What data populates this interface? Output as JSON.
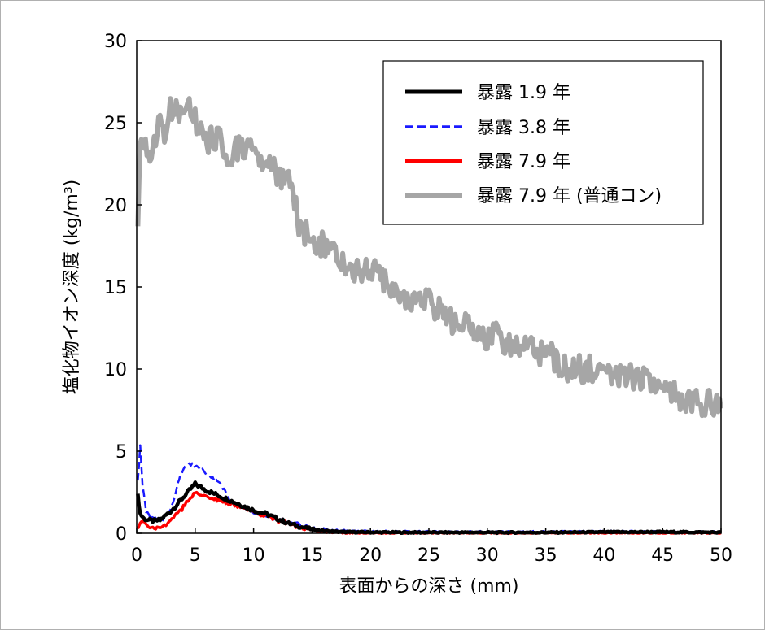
{
  "chart_data": {
    "type": "line",
    "xlabel": "表面からの深さ (mm)",
    "ylabel": "塩化物イオン深度 (kg/m³)",
    "xlim": [
      0,
      50
    ],
    "ylim": [
      0,
      30
    ],
    "xticks": [
      "0",
      "5",
      "10",
      "15",
      "20",
      "25",
      "30",
      "35",
      "40",
      "45",
      "50"
    ],
    "yticks": [
      "0",
      "5",
      "10",
      "15",
      "20",
      "25",
      "30"
    ],
    "grid": false,
    "legend_position": "top-right",
    "series": [
      {
        "name": "暴露 1.9 年",
        "color": "#000000",
        "dash": "solid",
        "x": [
          0.1,
          0.3,
          0.6,
          1,
          1.5,
          2,
          2.5,
          3,
          3.5,
          4,
          4.5,
          5,
          5.5,
          6,
          7,
          8,
          9,
          10,
          11,
          12,
          13,
          14,
          15,
          16,
          17,
          18,
          20,
          25,
          30,
          35,
          40,
          45,
          50
        ],
        "y": [
          2.3,
          1.2,
          0.9,
          0.8,
          0.75,
          0.8,
          1.1,
          1.4,
          1.8,
          2.2,
          2.6,
          3.0,
          2.8,
          2.6,
          2.3,
          2.0,
          1.7,
          1.4,
          1.2,
          0.9,
          0.6,
          0.4,
          0.25,
          0.15,
          0.1,
          0.08,
          0.06,
          0.05,
          0.05,
          0.05,
          0.07,
          0.08,
          0.05
        ]
      },
      {
        "name": "暴露 3.8 年",
        "color": "#1a1aff",
        "dash": "dashed",
        "x": [
          0.1,
          0.3,
          0.5,
          0.8,
          1.2,
          1.6,
          2,
          2.5,
          3,
          3.5,
          4,
          4.5,
          5,
          5.5,
          6,
          6.5,
          7,
          7.5,
          8,
          9,
          10,
          11,
          12,
          13,
          14,
          15,
          16,
          17,
          18,
          20,
          25,
          30,
          35,
          40,
          45,
          50
        ],
        "y": [
          3.2,
          5.3,
          3.0,
          1.3,
          0.9,
          0.85,
          0.8,
          0.9,
          1.6,
          3.0,
          4.0,
          4.2,
          4.1,
          3.9,
          3.6,
          3.4,
          3.1,
          2.6,
          2.0,
          1.6,
          1.3,
          1.1,
          0.9,
          0.7,
          0.5,
          0.35,
          0.25,
          0.2,
          0.15,
          0.12,
          0.1,
          0.1,
          0.1,
          0.12,
          0.1,
          0.08
        ]
      },
      {
        "name": "暴露 7.9 年",
        "color": "#ff0000",
        "dash": "solid",
        "x": [
          0.1,
          0.3,
          0.6,
          1,
          1.5,
          2,
          2.5,
          3,
          3.5,
          4,
          4.5,
          5,
          5.5,
          6,
          7,
          8,
          9,
          10,
          11,
          12,
          13,
          14,
          15,
          16,
          17,
          18,
          20,
          25,
          30,
          35,
          40,
          45,
          50
        ],
        "y": [
          0.3,
          0.6,
          0.7,
          0.45,
          0.3,
          0.35,
          0.5,
          0.8,
          1.2,
          1.6,
          2.1,
          2.5,
          2.4,
          2.2,
          2.0,
          1.8,
          1.6,
          1.3,
          1.1,
          0.8,
          0.6,
          0.35,
          0.2,
          0.1,
          0.05,
          0.03,
          0.02,
          0.02,
          0.02,
          0.02,
          0.02,
          0.03,
          0.02
        ]
      },
      {
        "name": "暴露 7.9 年 (普通コン)",
        "color": "#a6a6a6",
        "dash": "solid",
        "x": [
          0.1,
          0.3,
          0.5,
          1,
          1.5,
          2,
          2.5,
          3,
          3.5,
          4,
          4.5,
          5,
          5.5,
          6,
          7,
          8,
          9,
          10,
          11,
          12,
          13,
          14,
          15,
          16,
          17,
          18,
          19,
          20,
          21,
          22,
          23,
          24,
          25,
          26,
          27,
          28,
          29,
          30,
          31,
          32,
          33,
          34,
          35,
          36,
          37,
          38,
          39,
          40,
          41,
          42,
          43,
          44,
          45,
          46,
          47,
          48,
          49,
          50
        ],
        "y": [
          18.5,
          23.5,
          24.5,
          22.5,
          24.0,
          25.0,
          24.5,
          26.0,
          25.5,
          25.0,
          26.0,
          25.0,
          24.5,
          24.0,
          24.0,
          23.0,
          23.5,
          23.0,
          22.5,
          22.0,
          21.5,
          18.5,
          18.0,
          17.5,
          17.0,
          16.5,
          16.0,
          16.0,
          15.5,
          15.0,
          14.5,
          14.0,
          14.0,
          13.5,
          13.0,
          13.0,
          12.5,
          12.0,
          12.0,
          11.5,
          11.5,
          11.0,
          11.0,
          10.5,
          10.0,
          10.0,
          10.0,
          10.0,
          9.8,
          9.5,
          9.5,
          9.0,
          8.5,
          8.5,
          8.2,
          8.0,
          8.0,
          7.6
        ]
      }
    ]
  }
}
